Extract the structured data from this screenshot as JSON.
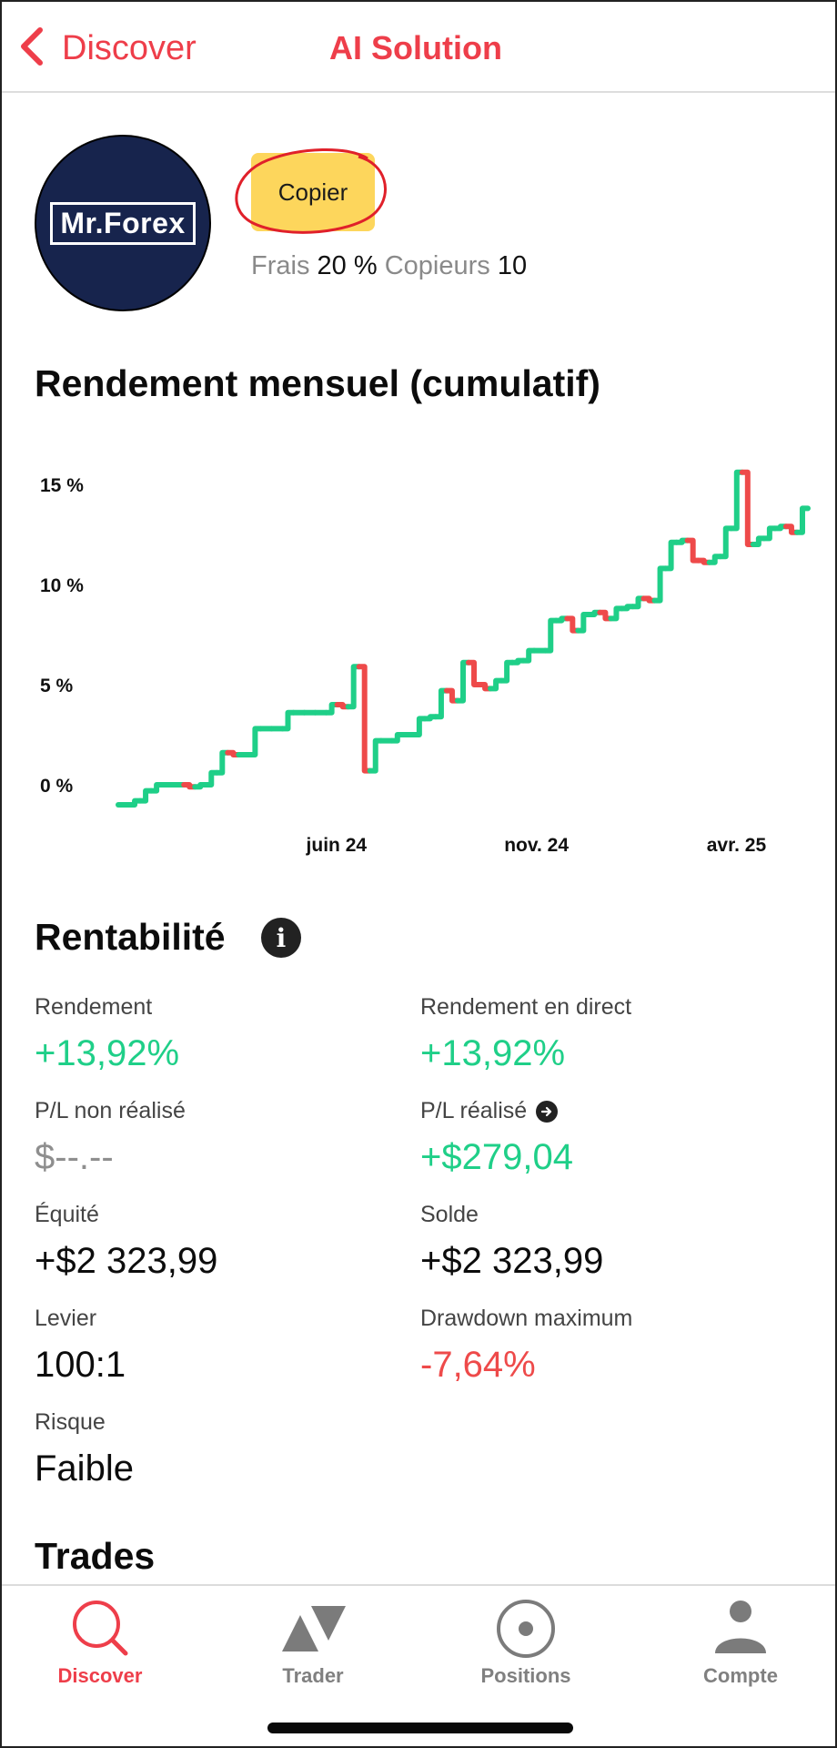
{
  "nav": {
    "back_label": "Discover",
    "title": "AI Solution",
    "accent_color": "#ee3e4a"
  },
  "profile": {
    "avatar_text": "Mr.Forex",
    "copy_label": "Copier",
    "fees_label": "Frais",
    "fees_value": "20 %",
    "copiers_label": "Copieurs",
    "copiers_value": "10"
  },
  "chart_section": {
    "title": "Rendement mensuel (cumulatif)"
  },
  "chart_data": {
    "type": "line",
    "title": "Rendement mensuel (cumulatif)",
    "y_ticks": [
      "15 %",
      "10 %",
      "5 %",
      "0 %"
    ],
    "y_tick_values": [
      15,
      10,
      5,
      0
    ],
    "x_tick_labels": [
      "juin 24",
      "nov. 24",
      "avr. 25"
    ],
    "ylim": [
      -1.2,
      16
    ],
    "up_color": "#1fcf88",
    "down_color": "#ee4a4a",
    "grid": false,
    "series": [
      {
        "values": [
          -1.0,
          -1.0,
          -0.8,
          -0.3,
          0.0,
          0.0,
          0.0,
          -0.1,
          0.0,
          0.6,
          1.6,
          1.5,
          1.5,
          2.8,
          2.8,
          2.8,
          3.6,
          3.6,
          3.6,
          3.6,
          4.0,
          3.9,
          5.9,
          0.7,
          2.2,
          2.2,
          2.5,
          2.5,
          3.3,
          3.4,
          4.7,
          4.2,
          6.1,
          5.0,
          4.8,
          5.2,
          6.1,
          6.2,
          6.7,
          6.7,
          8.2,
          8.3,
          7.7,
          8.5,
          8.6,
          8.3,
          8.8,
          8.9,
          9.3,
          9.2,
          10.8,
          12.1,
          12.2,
          11.2,
          11.1,
          11.4,
          12.8,
          15.6,
          12.0,
          12.3,
          12.8,
          12.9,
          12.6,
          13.8
        ]
      }
    ]
  },
  "profitability": {
    "title": "Rentabilité",
    "metrics": {
      "return": {
        "label": "Rendement",
        "value": "+13,92%"
      },
      "live_return": {
        "label": "Rendement en direct",
        "value": "+13,92%"
      },
      "unrealized": {
        "label": "P/L non réalisé",
        "value": "$--.--"
      },
      "realized": {
        "label": "P/L réalisé",
        "value": "+$279,04"
      },
      "equity": {
        "label": "Équité",
        "value": "+$2 323,99"
      },
      "balance": {
        "label": "Solde",
        "value": "+$2 323,99"
      },
      "leverage": {
        "label": "Levier",
        "value": "100:1"
      },
      "max_drawdown": {
        "label": "Drawdown maximum",
        "value": "-7,64%"
      },
      "risk": {
        "label": "Risque",
        "value": "Faible"
      }
    }
  },
  "trades_section": {
    "title": "Trades"
  },
  "tabbar": {
    "tabs": [
      {
        "label": "Discover",
        "icon": "search-icon",
        "active": true
      },
      {
        "label": "Trader",
        "icon": "trade-triangles-icon",
        "active": false
      },
      {
        "label": "Positions",
        "icon": "target-circle-icon",
        "active": false
      },
      {
        "label": "Compte",
        "icon": "user-icon",
        "active": false
      }
    ]
  }
}
